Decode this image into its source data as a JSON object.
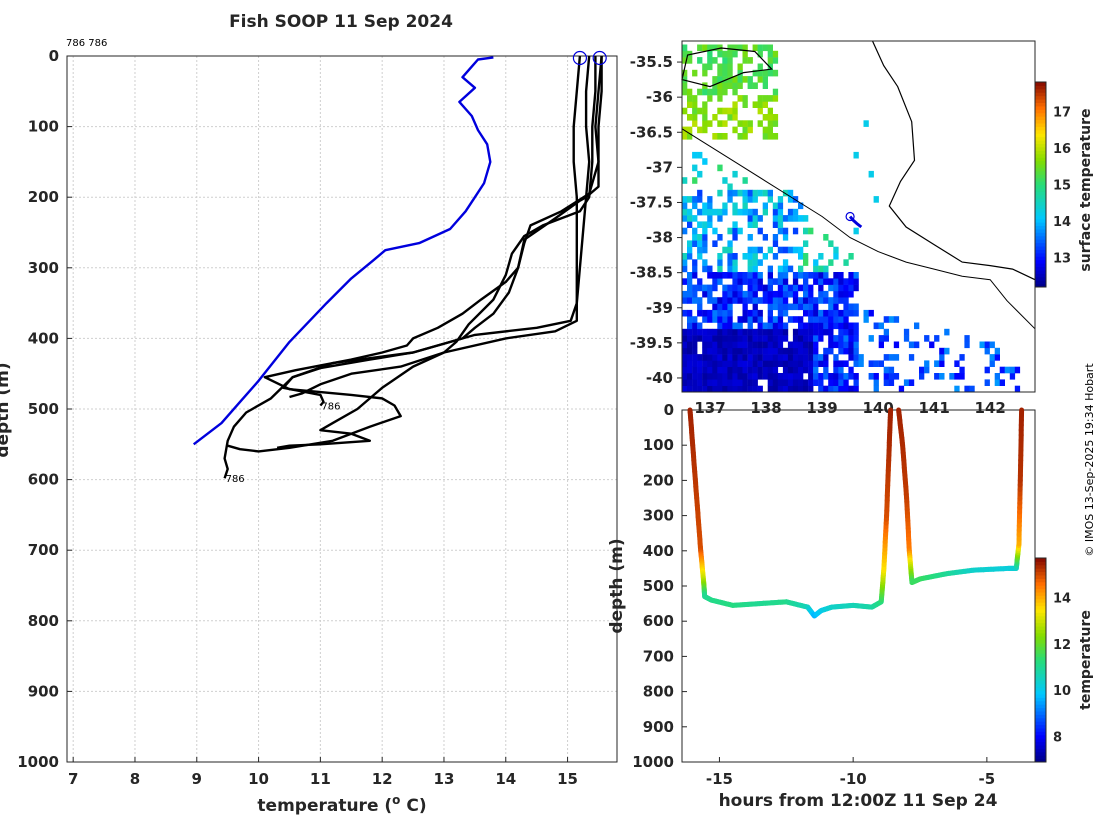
{
  "chart_data": [
    {
      "type": "line",
      "title": "Fish SOOP 11 Sep 2024",
      "xlabel": "temperature (",
      "xlabel_sup": "o",
      "xlabel_unit": " C)",
      "ylabel": "depth (m)",
      "xlim": [
        6.9,
        15.8
      ],
      "ylim": [
        0,
        1000
      ],
      "xticks": [
        7,
        8,
        9,
        10,
        11,
        12,
        13,
        14,
        15
      ],
      "yticks": [
        0,
        100,
        200,
        300,
        400,
        500,
        600,
        700,
        800,
        900,
        1000
      ],
      "top_left_note": "786 786",
      "climatology_color": "#0000dd",
      "profile_color": "#000000",
      "series": [
        {
          "name": "climatology",
          "color": "#0000dd",
          "points": [
            [
              13.8,
              2
            ],
            [
              13.55,
              5
            ],
            [
              13.45,
              15
            ],
            [
              13.3,
              30
            ],
            [
              13.5,
              45
            ],
            [
              13.25,
              65
            ],
            [
              13.45,
              85
            ],
            [
              13.55,
              105
            ],
            [
              13.7,
              125
            ],
            [
              13.75,
              150
            ],
            [
              13.65,
              180
            ],
            [
              13.5,
              200
            ],
            [
              13.35,
              220
            ],
            [
              13.1,
              245
            ],
            [
              12.6,
              265
            ],
            [
              12.05,
              275
            ],
            [
              11.85,
              290
            ],
            [
              11.5,
              315
            ],
            [
              11.1,
              350
            ],
            [
              10.5,
              405
            ],
            [
              10.0,
              460
            ],
            [
              9.7,
              490
            ],
            [
              9.4,
              520
            ],
            [
              8.95,
              550
            ]
          ]
        },
        {
          "name": "profile 1",
          "color": "#000000",
          "label": "786",
          "label_at": [
            11.0,
            495
          ],
          "points": [
            [
              15.2,
              0
            ],
            [
              15.15,
              50
            ],
            [
              15.1,
              100
            ],
            [
              15.1,
              150
            ],
            [
              15.15,
              200
            ],
            [
              15.15,
              250
            ],
            [
              15.15,
              300
            ],
            [
              15.15,
              350
            ],
            [
              15.05,
              375
            ],
            [
              14.5,
              385
            ],
            [
              13.5,
              395
            ],
            [
              12.5,
              420
            ],
            [
              11.8,
              430
            ],
            [
              11.0,
              442
            ],
            [
              10.55,
              455
            ],
            [
              10.4,
              470
            ],
            [
              11.0,
              480
            ],
            [
              11.05,
              490
            ],
            [
              11.0,
              495
            ]
          ]
        },
        {
          "name": "profile 2",
          "color": "#000000",
          "label": "786",
          "label_at": [
            9.45,
            598
          ],
          "points": [
            [
              15.55,
              0
            ],
            [
              15.5,
              50
            ],
            [
              15.45,
              100
            ],
            [
              15.5,
              150
            ],
            [
              15.5,
              185
            ],
            [
              15.3,
              200
            ],
            [
              15.2,
              205
            ],
            [
              14.8,
              230
            ],
            [
              14.3,
              260
            ],
            [
              14.2,
              300
            ],
            [
              14.05,
              335
            ],
            [
              13.8,
              365
            ],
            [
              13.5,
              385
            ],
            [
              13.3,
              400
            ],
            [
              12.5,
              420
            ],
            [
              11.2,
              435
            ],
            [
              10.55,
              455
            ],
            [
              10.2,
              485
            ],
            [
              9.8,
              505
            ],
            [
              9.6,
              525
            ],
            [
              9.5,
              545
            ],
            [
              9.45,
              570
            ],
            [
              9.5,
              585
            ],
            [
              9.45,
              598
            ]
          ]
        },
        {
          "name": "profile 3",
          "color": "#000000",
          "points": [
            [
              15.55,
              0
            ],
            [
              15.55,
              50
            ],
            [
              15.5,
              100
            ],
            [
              15.5,
              150
            ],
            [
              15.35,
              195
            ],
            [
              14.9,
              220
            ],
            [
              14.4,
              240
            ],
            [
              14.3,
              265
            ],
            [
              14.2,
              300
            ],
            [
              14.0,
              320
            ],
            [
              13.6,
              345
            ],
            [
              13.3,
              365
            ],
            [
              12.9,
              385
            ],
            [
              12.5,
              400
            ],
            [
              12.4,
              410
            ],
            [
              12.0,
              420
            ],
            [
              11.5,
              430
            ],
            [
              10.6,
              445
            ],
            [
              10.1,
              455
            ],
            [
              10.5,
              472
            ],
            [
              11.5,
              480
            ],
            [
              12.0,
              485
            ],
            [
              12.2,
              495
            ],
            [
              12.3,
              510
            ],
            [
              11.8,
              525
            ],
            [
              11.2,
              545
            ],
            [
              10.5,
              555
            ],
            [
              10.0,
              560
            ],
            [
              9.7,
              557
            ],
            [
              9.5,
              552
            ]
          ]
        },
        {
          "name": "profile 4",
          "color": "#000000",
          "points": [
            [
              15.45,
              0
            ],
            [
              15.45,
              50
            ],
            [
              15.4,
              100
            ],
            [
              15.4,
              150
            ],
            [
              15.35,
              200
            ],
            [
              15.2,
              220
            ],
            [
              14.6,
              240
            ],
            [
              14.3,
              255
            ],
            [
              14.1,
              280
            ],
            [
              14.0,
              310
            ],
            [
              13.8,
              345
            ],
            [
              13.4,
              380
            ],
            [
              13.2,
              405
            ],
            [
              13.0,
              420
            ],
            [
              12.3,
              440
            ],
            [
              11.5,
              450
            ],
            [
              11.0,
              465
            ],
            [
              10.7,
              478
            ],
            [
              10.5,
              483
            ]
          ]
        },
        {
          "name": "profile 5",
          "color": "#000000",
          "points": [
            [
              15.35,
              0
            ],
            [
              15.3,
              50
            ],
            [
              15.3,
              100
            ],
            [
              15.35,
              150
            ],
            [
              15.3,
              200
            ],
            [
              15.25,
              250
            ],
            [
              15.2,
              300
            ],
            [
              15.15,
              350
            ],
            [
              15.15,
              375
            ],
            [
              14.8,
              390
            ],
            [
              14.0,
              400
            ],
            [
              13.0,
              420
            ],
            [
              12.5,
              440
            ],
            [
              12.0,
              470
            ],
            [
              11.6,
              500
            ],
            [
              11.2,
              520
            ],
            [
              11.0,
              530
            ],
            [
              11.5,
              535
            ],
            [
              11.8,
              545
            ],
            [
              11.0,
              550
            ],
            [
              10.5,
              552
            ],
            [
              10.3,
              555
            ]
          ]
        }
      ],
      "markers": [
        [
          15.2,
          0
        ],
        [
          15.52,
          0
        ]
      ]
    },
    {
      "type": "heatmap",
      "xlim": [
        136.5,
        142.8
      ],
      "ylim": [
        -40.2,
        -35.2
      ],
      "yticks": [
        -35.5,
        -36,
        -36.5,
        -37,
        -37.5,
        -38,
        -38.5,
        -39,
        -39.5,
        -40
      ],
      "ytick_labels": [
        "-35.5",
        "-36",
        "-36.5",
        "-37",
        "-37.5",
        "-38",
        "-38.5",
        "-39",
        "-39.5",
        "-40"
      ],
      "xticks": [
        137,
        138,
        139,
        140,
        141,
        142
      ],
      "xtick_labels": [
        "137",
        "138",
        "139",
        "140",
        "141",
        "142"
      ],
      "colorbar_label": "surface temperature",
      "colorbar_ticks": [
        13,
        14,
        15,
        16,
        17
      ],
      "colorbar_range": [
        12.2,
        17.8
      ],
      "coast_color": "#000000",
      "track_color": "#0000dd",
      "track": [
        [
          139.5,
          -37.7
        ],
        [
          139.55,
          -37.75
        ],
        [
          139.62,
          -37.8
        ],
        [
          139.7,
          -37.85
        ]
      ]
    },
    {
      "type": "scatter",
      "xlabel": "hours from 12:00Z 11 Sep 24",
      "ylabel": "depth (m)",
      "xlim": [
        -16.4,
        -3.2
      ],
      "ylim": [
        0,
        1000
      ],
      "xticks": [
        -15,
        -10,
        -5
      ],
      "xtick_labels": [
        "-15",
        "-10",
        "-5"
      ],
      "yticks": [
        0,
        100,
        200,
        300,
        400,
        500,
        600,
        700,
        800,
        900,
        1000
      ],
      "colorbar_label": "temperature",
      "colorbar_ticks": [
        8,
        10,
        12,
        14
      ],
      "colorbar_range": [
        6.9,
        15.7
      ],
      "series": [
        {
          "name": "descent 1",
          "points": [
            [
              -16.1,
              0,
              15.5
            ],
            [
              -16.0,
              100,
              15.4
            ],
            [
              -15.85,
              250,
              15.2
            ],
            [
              -15.7,
              400,
              15.0
            ],
            [
              -15.6,
              480,
              13.0
            ],
            [
              -15.55,
              530,
              11.0
            ]
          ]
        },
        {
          "name": "bottom 1",
          "points": [
            [
              -15.55,
              530,
              11.0
            ],
            [
              -15.3,
              540,
              11.1
            ],
            [
              -14.5,
              555,
              11.2
            ],
            [
              -13.5,
              550,
              11.0
            ],
            [
              -12.5,
              545,
              11.1
            ],
            [
              -11.7,
              560,
              10.6
            ],
            [
              -11.45,
              585,
              9.6
            ],
            [
              -11.2,
              570,
              10.0
            ],
            [
              -10.8,
              560,
              10.4
            ],
            [
              -10.0,
              555,
              10.6
            ],
            [
              -9.3,
              560,
              10.8
            ],
            [
              -8.95,
              545,
              11.2
            ]
          ]
        },
        {
          "name": "ascent 1",
          "points": [
            [
              -8.95,
              545,
              11.2
            ],
            [
              -8.85,
              450,
              13.5
            ],
            [
              -8.75,
              300,
              15.0
            ],
            [
              -8.65,
              100,
              15.4
            ],
            [
              -8.6,
              0,
              15.5
            ]
          ]
        },
        {
          "name": "descent 2",
          "points": [
            [
              -8.3,
              0,
              15.5
            ],
            [
              -8.15,
              100,
              15.4
            ],
            [
              -8.0,
              250,
              15.2
            ],
            [
              -7.9,
              400,
              14.5
            ],
            [
              -7.8,
              490,
              11.5
            ]
          ]
        },
        {
          "name": "bottom 2",
          "points": [
            [
              -7.8,
              490,
              11.5
            ],
            [
              -7.5,
              480,
              11.5
            ],
            [
              -6.5,
              465,
              11.0
            ],
            [
              -5.5,
              455,
              10.4
            ],
            [
              -4.2,
              450,
              10.2
            ],
            [
              -3.9,
              450,
              10.3
            ]
          ]
        },
        {
          "name": "ascent 2",
          "points": [
            [
              -3.9,
              450,
              10.3
            ],
            [
              -3.8,
              380,
              14.0
            ],
            [
              -3.75,
              200,
              15.3
            ],
            [
              -3.7,
              0,
              15.5
            ]
          ]
        }
      ]
    }
  ],
  "footer": {
    "copyright": "© IMOS 13-Sep-2025 19:34 Hobart"
  }
}
